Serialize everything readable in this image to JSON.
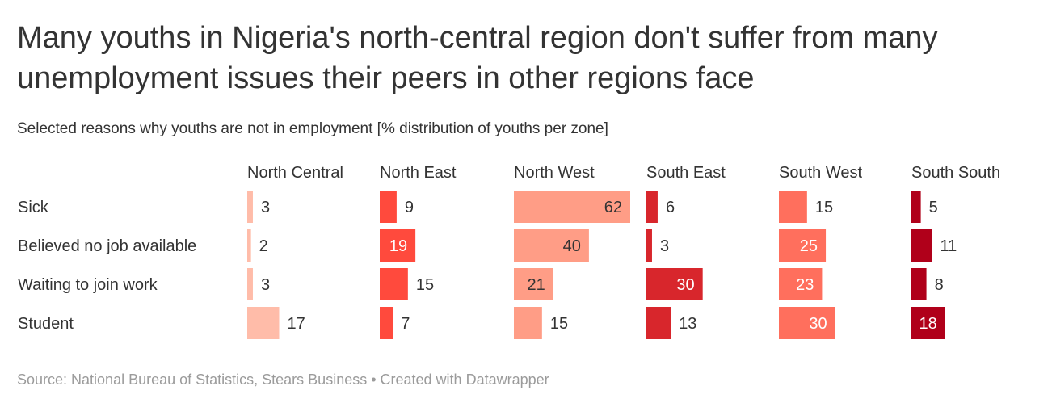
{
  "title": "Many youths in Nigeria's north-central region don't suffer from many unemployment issues their peers in other regions face",
  "subtitle": "Selected reasons why youths are not in employment [% distribution of youths per zone]",
  "source": "Source: National Bureau of Statistics, Stears Business • Created with Datawrapper",
  "chart_data": {
    "type": "bar",
    "orientation": "horizontal",
    "layout": "small-multiples",
    "title": "Many youths in Nigeria's north-central region don't suffer from many unemployment issues their peers in other regions face",
    "subtitle": "Selected reasons why youths are not in employment [% distribution of youths per zone]",
    "categories": [
      "Sick",
      "Believed no job available",
      "Waiting to join work",
      "Student"
    ],
    "series": [
      {
        "name": "North Central",
        "values": [
          3,
          2,
          3,
          17
        ],
        "color": "#ffbca9"
      },
      {
        "name": "North East",
        "values": [
          9,
          19,
          15,
          7
        ],
        "color": "#ff4a3d"
      },
      {
        "name": "North West",
        "values": [
          62,
          40,
          21,
          15
        ],
        "color": "#ff9d86"
      },
      {
        "name": "South East",
        "values": [
          6,
          3,
          30,
          13
        ],
        "color": "#d8262c"
      },
      {
        "name": "South West",
        "values": [
          15,
          25,
          23,
          30
        ],
        "color": "#ff6f5d"
      },
      {
        "name": "South South",
        "values": [
          5,
          11,
          8,
          18
        ],
        "color": "#b0001a"
      }
    ],
    "xlim": [
      0,
      62
    ],
    "grid": false,
    "legend": "none",
    "label_colors": {
      "outside": "#333333",
      "inside_dark": "#333333",
      "inside_light": "#ffffff"
    }
  }
}
